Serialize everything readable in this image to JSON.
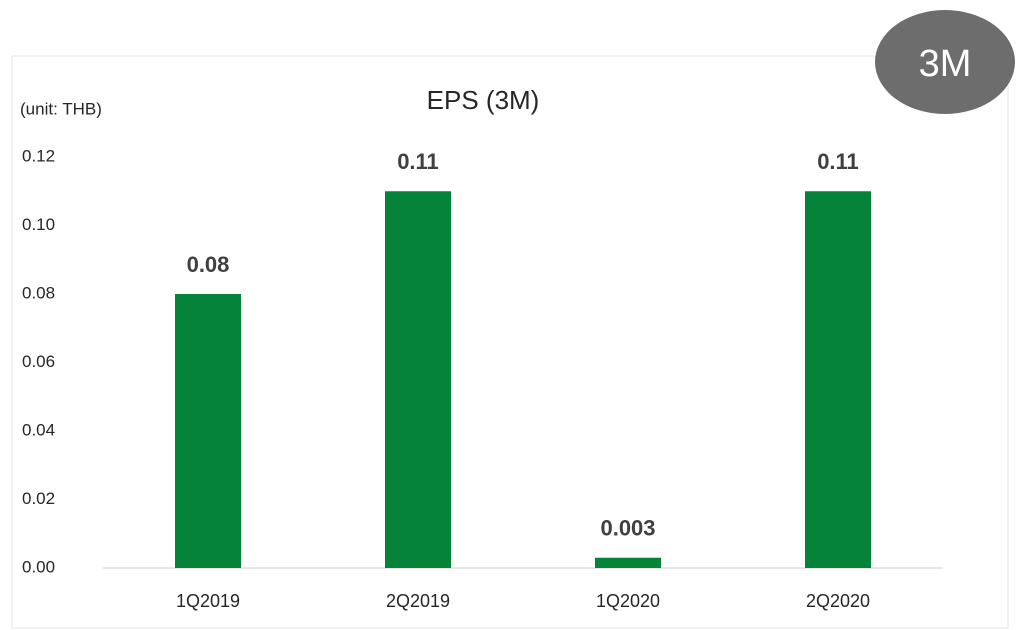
{
  "chart_data": {
    "type": "bar",
    "title": "EPS (3M)",
    "unit_label": "(unit: THB)",
    "badge": "3M",
    "categories": [
      "1Q2019",
      "2Q2019",
      "1Q2020",
      "2Q2020"
    ],
    "values": [
      0.08,
      0.11,
      0.003,
      0.11
    ],
    "color": "#05833b",
    "ylim": [
      0,
      0.12
    ],
    "yticks": [
      {
        "value": 0,
        "label": "0.00"
      },
      0.02,
      0.04,
      0.06,
      0.08,
      {
        "value": 0.1,
        "label": "0.10"
      },
      0.12
    ],
    "grid": false
  }
}
